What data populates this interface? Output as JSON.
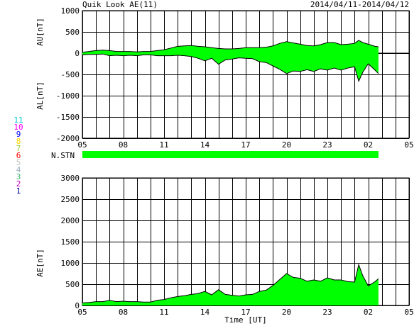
{
  "header": {
    "title": "Quik Look AE(11)",
    "date_range": "2014/04/11-2014/04/12"
  },
  "colors": {
    "fill": "#00ff00",
    "grid": "#000000",
    "background": "#ffffff"
  },
  "legend": [
    {
      "num": "11",
      "color": "#00c8c8"
    },
    {
      "num": "10",
      "color": "#ff00ff"
    },
    {
      "num": "9",
      "color": "#0000ff"
    },
    {
      "num": "8",
      "color": "#ffd700"
    },
    {
      "num": "7",
      "color": "#9acd32"
    },
    {
      "num": "6",
      "color": "#ff0000"
    },
    {
      "num": "5",
      "color": "#c0c0c0"
    },
    {
      "num": "4",
      "color": "#9ab0c0"
    },
    {
      "num": "3",
      "color": "#3cb371"
    },
    {
      "num": "2",
      "color": "#c000c0"
    },
    {
      "num": "1",
      "color": "#0000a0"
    }
  ],
  "stations_label": "N.STN",
  "chart_data": [
    {
      "type": "area",
      "name": "AU/AL",
      "ylabel_top": "AU[nT]",
      "ylabel_bottom": "AL[nT]",
      "ylim": [
        -2000,
        1000
      ],
      "yticks": [
        1000,
        500,
        0,
        -500,
        -1000,
        -1500,
        -2000
      ],
      "xlim": [
        5,
        29
      ],
      "xticks": [
        "05",
        "08",
        "11",
        "14",
        "17",
        "20",
        "23",
        "02",
        "05"
      ],
      "x": [
        5,
        5.5,
        6,
        6.5,
        7,
        7.5,
        8,
        8.5,
        9,
        9.5,
        10,
        10.5,
        11,
        11.5,
        12,
        12.5,
        13,
        13.5,
        14,
        14.5,
        15,
        15.5,
        16,
        16.5,
        17,
        17.5,
        18,
        18.5,
        19,
        19.5,
        20,
        20.5,
        21,
        21.5,
        22,
        22.5,
        23,
        23.5,
        24,
        24.5,
        25,
        25.3,
        25.6,
        26,
        26.5,
        26.75
      ],
      "au": [
        20,
        40,
        60,
        70,
        60,
        40,
        40,
        40,
        30,
        40,
        40,
        60,
        80,
        120,
        160,
        170,
        180,
        160,
        150,
        130,
        110,
        100,
        100,
        110,
        130,
        130,
        130,
        140,
        170,
        230,
        270,
        240,
        210,
        180,
        170,
        200,
        250,
        250,
        200,
        210,
        230,
        300,
        250,
        210,
        160,
        150
      ],
      "al": [
        -40,
        -30,
        -30,
        -20,
        -60,
        -50,
        -60,
        -50,
        -60,
        -40,
        -40,
        -60,
        -60,
        -60,
        -50,
        -60,
        -80,
        -120,
        -180,
        -120,
        -260,
        -160,
        -140,
        -110,
        -120,
        -130,
        -200,
        -220,
        -300,
        -380,
        -480,
        -420,
        -430,
        -390,
        -430,
        -370,
        -400,
        -350,
        -400,
        -350,
        -320,
        -660,
        -450,
        -250,
        -400,
        -480
      ]
    },
    {
      "type": "area",
      "name": "AE",
      "ylabel": "AE[nT]",
      "xlabel": "Time [UT]",
      "ylim": [
        0,
        3000
      ],
      "yticks": [
        3000,
        2500,
        2000,
        1500,
        1000,
        500,
        0
      ],
      "xlim": [
        5,
        29
      ],
      "xticks": [
        "05",
        "08",
        "11",
        "14",
        "17",
        "20",
        "23",
        "02",
        "05"
      ],
      "x": [
        5,
        5.5,
        6,
        6.5,
        7,
        7.5,
        8,
        8.5,
        9,
        9.5,
        10,
        10.5,
        11,
        11.5,
        12,
        12.5,
        13,
        13.5,
        14,
        14.5,
        15,
        15.5,
        16,
        16.5,
        17,
        17.5,
        18,
        18.5,
        19,
        19.5,
        20,
        20.5,
        21,
        21.5,
        22,
        22.5,
        23,
        23.5,
        24,
        24.5,
        25,
        25.3,
        25.6,
        26,
        26.5,
        26.75
      ],
      "values": [
        60,
        70,
        90,
        90,
        120,
        90,
        100,
        90,
        90,
        80,
        80,
        120,
        140,
        180,
        210,
        230,
        260,
        280,
        330,
        250,
        370,
        260,
        240,
        220,
        250,
        260,
        330,
        360,
        470,
        610,
        750,
        660,
        640,
        570,
        600,
        570,
        650,
        600,
        600,
        560,
        550,
        960,
        700,
        460,
        560,
        630
      ]
    }
  ]
}
